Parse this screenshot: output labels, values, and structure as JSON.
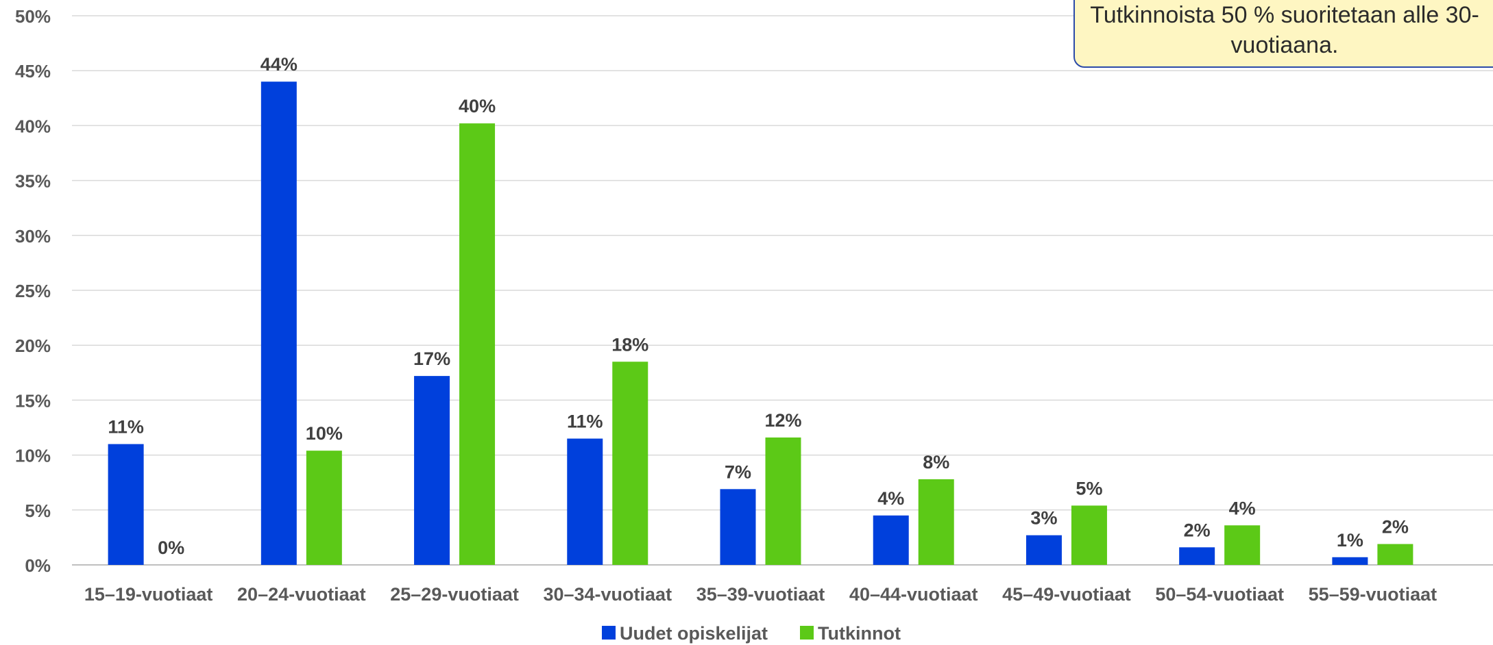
{
  "chart_data": {
    "type": "bar",
    "categories": [
      "15–19-vuotiaat",
      "20–24-vuotiaat",
      "25–29-vuotiaat",
      "30–34-vuotiaat",
      "35–39-vuotiaat",
      "40–44-vuotiaat",
      "45–49-vuotiaat",
      "50–54-vuotiaat",
      "55–59-vuotiaat"
    ],
    "series": [
      {
        "name": "Uudet opiskelijat",
        "color": "#0040dc",
        "values": [
          11.0,
          44.0,
          17.2,
          11.5,
          6.9,
          4.5,
          2.7,
          1.6,
          0.7
        ],
        "labels": [
          "11%",
          "44%",
          "17%",
          "11%",
          "7%",
          "4%",
          "3%",
          "2%",
          "1%"
        ]
      },
      {
        "name": "Tutkinnot",
        "color": "#5cc917",
        "values": [
          0.0,
          10.4,
          40.2,
          18.5,
          11.6,
          7.8,
          5.4,
          3.6,
          1.9
        ],
        "labels": [
          "0%",
          "10%",
          "40%",
          "18%",
          "12%",
          "8%",
          "5%",
          "4%",
          "2%"
        ]
      }
    ],
    "ylim": [
      0,
      50
    ],
    "yticks": [
      "0%",
      "5%",
      "10%",
      "15%",
      "20%",
      "25%",
      "30%",
      "35%",
      "40%",
      "45%",
      "50%"
    ],
    "xlabel": "",
    "ylabel": "",
    "grid": true,
    "legend": "bottom"
  },
  "callout": {
    "text": "Tutkinnoista 50 % suoritetaan alle 30-vuotiaana."
  }
}
